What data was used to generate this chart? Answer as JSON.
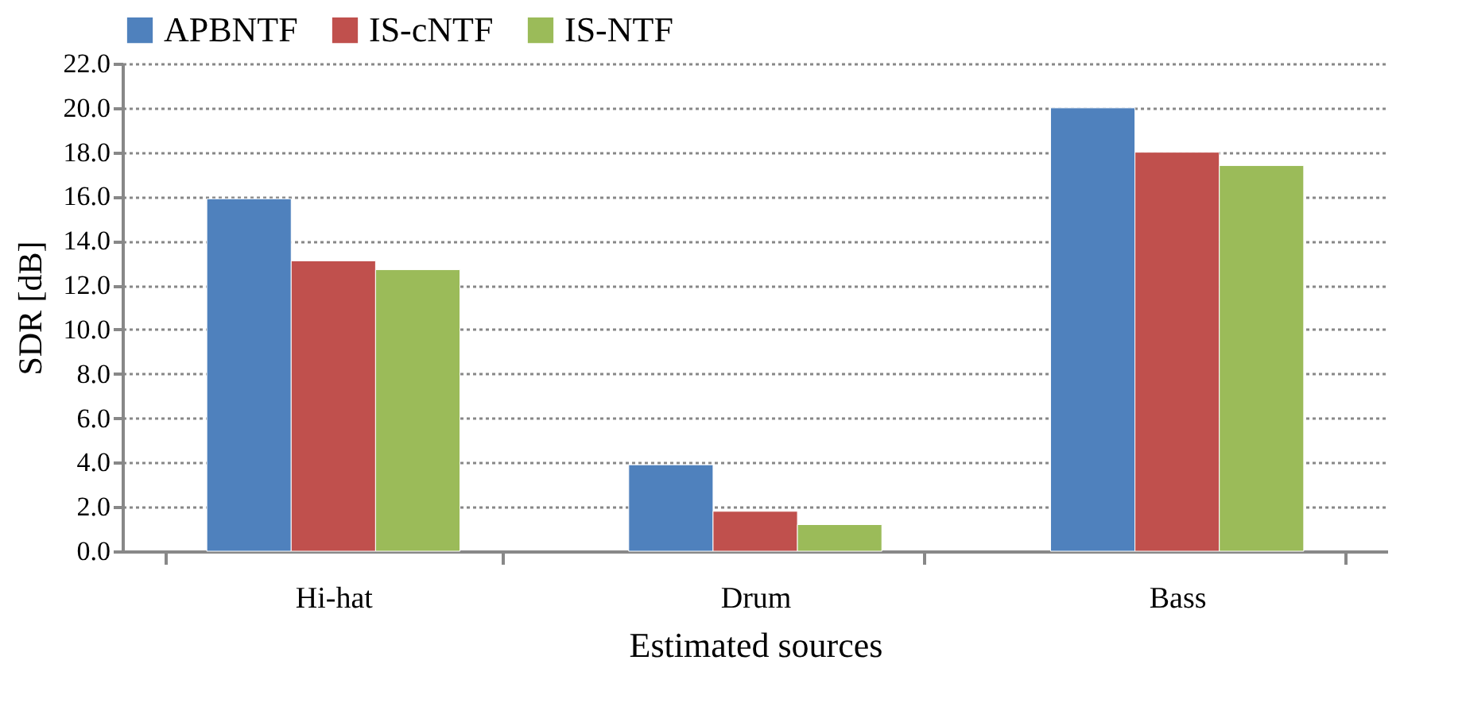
{
  "chart_data": {
    "type": "bar",
    "xlabel": "Estimated sources",
    "ylabel": "SDR [dB]",
    "categories": [
      "Hi-hat",
      "Drum",
      "Bass"
    ],
    "series": [
      {
        "name": "APBNTF",
        "color": "#4f81bd",
        "values": [
          15.9,
          3.9,
          20.0
        ]
      },
      {
        "name": "IS-cNTF",
        "color": "#c0504d",
        "values": [
          13.1,
          1.8,
          18.0
        ]
      },
      {
        "name": "IS-NTF",
        "color": "#9bbb59",
        "values": [
          12.7,
          1.2,
          17.4
        ]
      }
    ],
    "ylim": [
      0,
      22
    ],
    "yticks": [
      {
        "value": 0,
        "label": "0.0"
      },
      {
        "value": 2,
        "label": "2.0"
      },
      {
        "value": 4,
        "label": "4.0"
      },
      {
        "value": 6,
        "label": "6.0"
      },
      {
        "value": 8,
        "label": "8.0"
      },
      {
        "value": 10,
        "label": "10.0"
      },
      {
        "value": 12,
        "label": "12.0"
      },
      {
        "value": 14,
        "label": "14.0"
      },
      {
        "value": 16,
        "label": "16.0"
      },
      {
        "value": 18,
        "label": "18.0"
      },
      {
        "value": 20,
        "label": "20.0"
      },
      {
        "value": 22,
        "label": "22.0"
      }
    ],
    "grid": "y",
    "legend": "top"
  }
}
